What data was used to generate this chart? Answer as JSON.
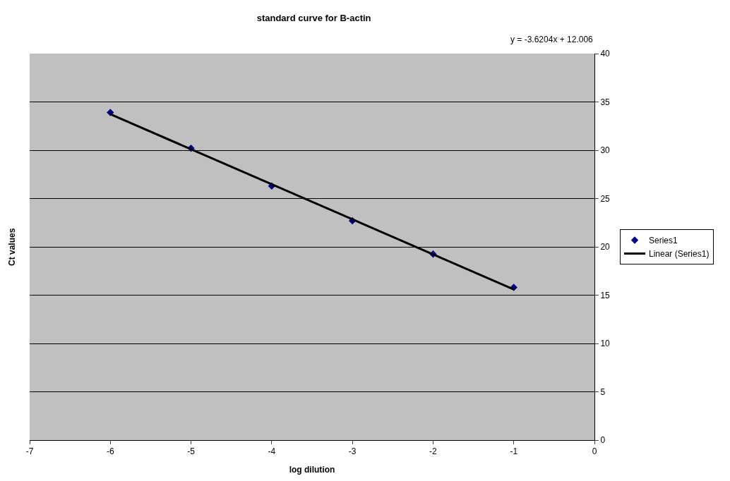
{
  "chart_data": {
    "type": "scatter",
    "title": "standard curve for B-actin",
    "xlabel": "log dilution",
    "ylabel": "Ct values",
    "annotations": [
      "y = -3.6204x + 12.006"
    ],
    "x": [
      -6,
      -5,
      -4,
      -3,
      -2,
      -1
    ],
    "series": [
      {
        "name": "Series1",
        "color": "#000080",
        "values": [
          33.9,
          30.2,
          26.3,
          22.7,
          19.25,
          15.8
        ],
        "marker": "diamond"
      },
      {
        "name": "Linear (Series1)",
        "type": "line",
        "color": "#000000",
        "x": [
          -6,
          -1
        ],
        "values": [
          33.73,
          15.6
        ],
        "marker": "none",
        "line_style": "solid"
      }
    ],
    "xlim": [
      -7,
      0
    ],
    "xticks": [
      -7,
      -6,
      -5,
      -4,
      -3,
      -2,
      -1,
      0
    ],
    "ylim": [
      0,
      40
    ],
    "yticks": [
      0,
      5,
      10,
      15,
      20,
      25,
      30,
      35,
      40
    ],
    "grid": "y",
    "legend": "right"
  }
}
